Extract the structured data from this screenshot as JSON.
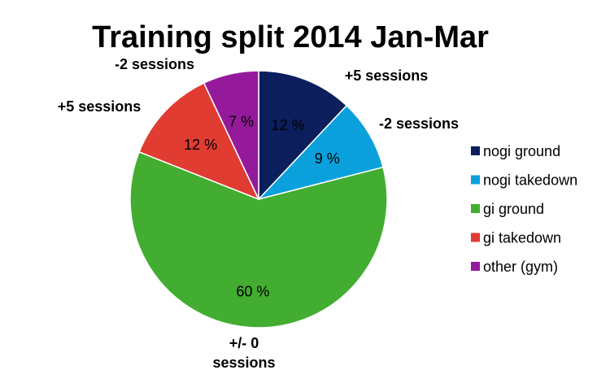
{
  "chart_data": {
    "type": "pie",
    "title": "Training split 2014 Jan-Mar",
    "legend_position": "right",
    "slices": [
      {
        "label": "nogi ground",
        "value": 12,
        "value_label": "12 %",
        "color": "#0c1f5c",
        "change_label": [
          "+5 sessions"
        ]
      },
      {
        "label": "nogi takedown",
        "value": 9,
        "value_label": "9 %",
        "color": "#0aa0dc",
        "change_label": [
          "-2 sessions"
        ]
      },
      {
        "label": "gi ground",
        "value": 60,
        "value_label": "60 %",
        "color": "#42ad30",
        "change_label": [
          "+/- 0",
          "sessions"
        ]
      },
      {
        "label": "gi takedown",
        "value": 12,
        "value_label": "12 %",
        "color": "#e03c31",
        "change_label": [
          "+5 sessions"
        ]
      },
      {
        "label": "other (gym)",
        "value": 7,
        "value_label": "7 %",
        "color": "#951a9b",
        "change_label": [
          "-2 sessions"
        ]
      }
    ]
  }
}
